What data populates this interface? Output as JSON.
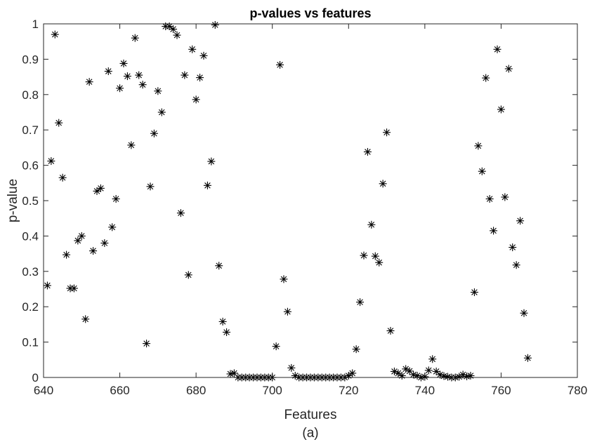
{
  "chart_data": {
    "type": "scatter",
    "title": "p-values vs features",
    "xlabel": "Features",
    "ylabel": "p-value",
    "caption": "(a)",
    "xlim": [
      640,
      780
    ],
    "ylim": [
      0,
      1
    ],
    "xticks": [
      640,
      660,
      680,
      700,
      720,
      740,
      760,
      780
    ],
    "yticks": [
      0,
      0.1,
      0.2,
      0.3,
      0.4,
      0.5,
      0.6,
      0.7,
      0.8,
      0.9,
      1
    ],
    "marker": "asterisk",
    "marker_color": "#000000",
    "grid": false,
    "series": [
      {
        "points": [
          [
            641,
            0.26
          ],
          [
            642,
            0.612
          ],
          [
            643,
            0.97
          ],
          [
            644,
            0.72
          ],
          [
            645,
            0.565
          ],
          [
            646,
            0.347
          ],
          [
            647,
            0.252
          ],
          [
            648,
            0.252
          ],
          [
            649,
            0.387
          ],
          [
            650,
            0.4
          ],
          [
            651,
            0.165
          ],
          [
            652,
            0.836
          ],
          [
            653,
            0.358
          ],
          [
            654,
            0.527
          ],
          [
            655,
            0.535
          ],
          [
            656,
            0.38
          ],
          [
            657,
            0.866
          ],
          [
            658,
            0.425
          ],
          [
            659,
            0.505
          ],
          [
            660,
            0.818
          ],
          [
            661,
            0.888
          ],
          [
            662,
            0.852
          ],
          [
            663,
            0.657
          ],
          [
            664,
            0.96
          ],
          [
            665,
            0.855
          ],
          [
            666,
            0.828
          ],
          [
            667,
            0.096
          ],
          [
            668,
            0.54
          ],
          [
            669,
            0.69
          ],
          [
            670,
            0.81
          ],
          [
            671,
            0.75
          ],
          [
            672,
            0.993
          ],
          [
            673,
            0.993
          ],
          [
            674,
            0.985
          ],
          [
            675,
            0.968
          ],
          [
            676,
            0.465
          ],
          [
            677,
            0.855
          ],
          [
            678,
            0.29
          ],
          [
            679,
            0.928
          ],
          [
            680,
            0.786
          ],
          [
            681,
            0.848
          ],
          [
            682,
            0.91
          ],
          [
            683,
            0.543
          ],
          [
            684,
            0.611
          ],
          [
            685,
            0.997
          ],
          [
            686,
            0.316
          ],
          [
            687,
            0.158
          ],
          [
            688,
            0.128
          ],
          [
            689,
            0.01
          ],
          [
            690,
            0.012
          ],
          [
            691,
            0.0
          ],
          [
            692,
            0.0
          ],
          [
            693,
            0.0
          ],
          [
            694,
            0.0
          ],
          [
            695,
            0.0
          ],
          [
            696,
            0.0
          ],
          [
            697,
            0.0
          ],
          [
            698,
            0.0
          ],
          [
            699,
            0.0
          ],
          [
            700,
            0.0
          ],
          [
            701,
            0.088
          ],
          [
            702,
            0.884
          ],
          [
            703,
            0.278
          ],
          [
            704,
            0.186
          ],
          [
            705,
            0.027
          ],
          [
            706,
            0.005
          ],
          [
            707,
            0.0
          ],
          [
            708,
            0.0
          ],
          [
            709,
            0.0
          ],
          [
            710,
            0.0
          ],
          [
            711,
            0.0
          ],
          [
            712,
            0.0
          ],
          [
            713,
            0.0
          ],
          [
            714,
            0.0
          ],
          [
            715,
            0.0
          ],
          [
            716,
            0.0
          ],
          [
            717,
            0.0
          ],
          [
            718,
            0.0
          ],
          [
            719,
            0.0
          ],
          [
            720,
            0.005
          ],
          [
            721,
            0.012
          ],
          [
            722,
            0.08
          ],
          [
            723,
            0.213
          ],
          [
            724,
            0.345
          ],
          [
            725,
            0.638
          ],
          [
            726,
            0.432
          ],
          [
            727,
            0.343
          ],
          [
            728,
            0.325
          ],
          [
            729,
            0.548
          ],
          [
            730,
            0.693
          ],
          [
            731,
            0.132
          ],
          [
            732,
            0.017
          ],
          [
            733,
            0.012
          ],
          [
            734,
            0.005
          ],
          [
            735,
            0.024
          ],
          [
            736,
            0.018
          ],
          [
            737,
            0.008
          ],
          [
            738,
            0.005
          ],
          [
            739,
            0.0
          ],
          [
            740,
            0.002
          ],
          [
            741,
            0.02
          ],
          [
            742,
            0.052
          ],
          [
            743,
            0.017
          ],
          [
            744,
            0.008
          ],
          [
            745,
            0.004
          ],
          [
            746,
            0.002
          ],
          [
            747,
            0.0
          ],
          [
            748,
            0.0
          ],
          [
            749,
            0.002
          ],
          [
            750,
            0.008
          ],
          [
            751,
            0.003
          ],
          [
            752,
            0.005
          ],
          [
            753,
            0.241
          ],
          [
            754,
            0.655
          ],
          [
            755,
            0.583
          ],
          [
            756,
            0.847
          ],
          [
            757,
            0.505
          ],
          [
            758,
            0.415
          ],
          [
            759,
            0.928
          ],
          [
            760,
            0.758
          ],
          [
            761,
            0.51
          ],
          [
            762,
            0.873
          ],
          [
            763,
            0.368
          ],
          [
            764,
            0.318
          ],
          [
            765,
            0.443
          ],
          [
            766,
            0.182
          ],
          [
            767,
            0.055
          ]
        ]
      }
    ]
  }
}
